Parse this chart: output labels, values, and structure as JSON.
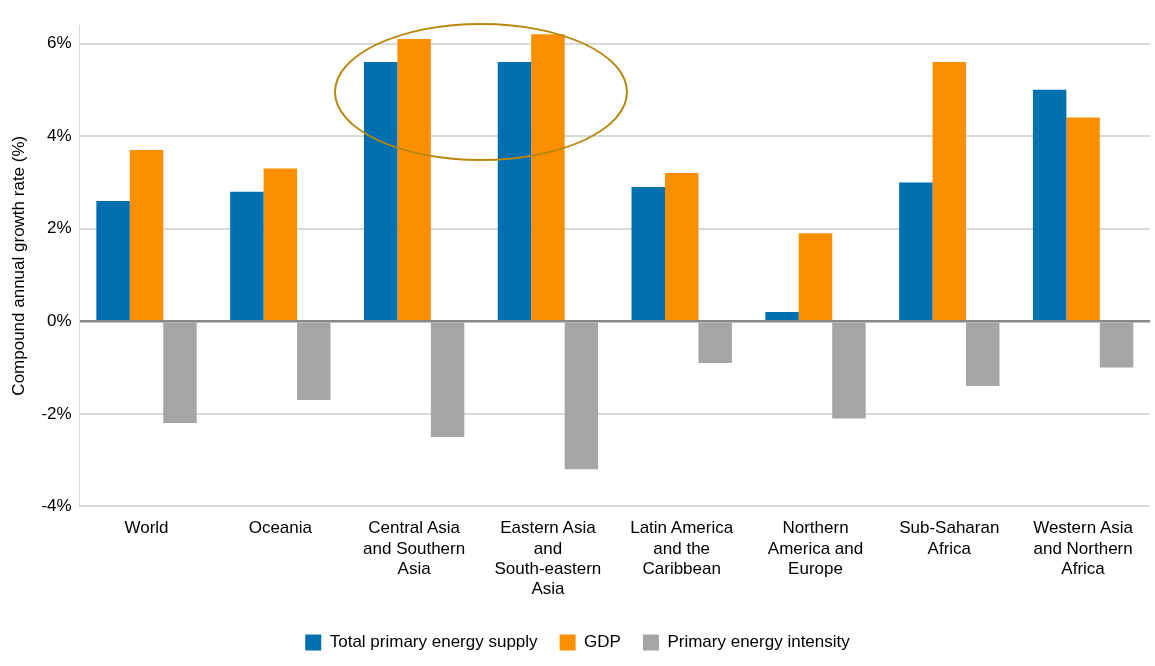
{
  "chart_data": {
    "type": "bar",
    "ylabel": "Compound annual growth rate (%)",
    "categories": [
      "World",
      "Oceania",
      "Central Asia and Southern Asia",
      "Eastern Asia and South-eastern Asia",
      "Latin America and the Caribbean",
      "Northern America and Europe",
      "Sub-Saharan Africa",
      "Western Asia and Northern Africa"
    ],
    "series": [
      {
        "name": "Total primary energy supply",
        "color": "#0070b0",
        "values": [
          2.6,
          2.8,
          5.6,
          5.6,
          2.9,
          0.2,
          3.0,
          5.0
        ]
      },
      {
        "name": "GDP",
        "color": "#fb8f00",
        "values": [
          3.7,
          3.3,
          6.1,
          6.2,
          3.2,
          1.9,
          5.6,
          4.4
        ]
      },
      {
        "name": "Primary energy intensity",
        "color": "#a5a5a5",
        "values": [
          -2.2,
          -1.7,
          -2.5,
          -3.2,
          -0.9,
          -2.1,
          -1.4,
          -1.0
        ]
      }
    ],
    "ylim": [
      -4,
      6.4
    ],
    "yticks": [
      {
        "value": -4,
        "label": "-4%"
      },
      {
        "value": -2,
        "label": "-2%"
      },
      {
        "value": 0,
        "label": "0%"
      },
      {
        "value": 2,
        "label": "2%"
      },
      {
        "value": 4,
        "label": "4%"
      },
      {
        "value": 6,
        "label": "6%"
      }
    ],
    "grid": "y",
    "legend": "bottom"
  }
}
